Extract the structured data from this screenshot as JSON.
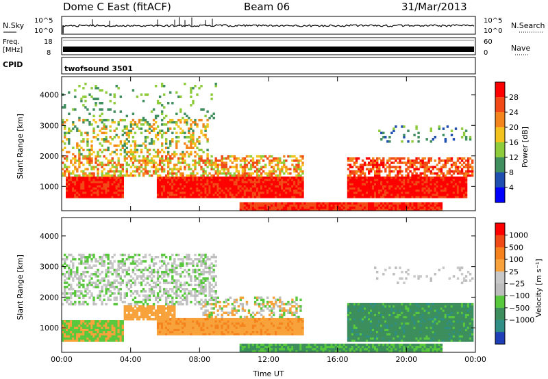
{
  "header": {
    "title": "Dome C East (fitACF)",
    "beam": "Beam 06",
    "date": "31/Mar/2013"
  },
  "aux": {
    "nsky_label": "N.Sky",
    "nsky_ticks": [
      "10^5",
      "10^0"
    ],
    "nsearch_label": "N.Search",
    "nsearch_ticks": [
      "10^5",
      "10^0"
    ],
    "freq_label": "Freq.",
    "freq_unit": "[MHz]",
    "freq_ticks": [
      "18",
      "8"
    ],
    "nave_label": "Nave",
    "nave_ticks": [
      "60",
      "0"
    ],
    "cpid_label": "CPID",
    "cpid_value": "twofsound 3501"
  },
  "chart_data": [
    {
      "type": "heatmap",
      "name": "power-panel",
      "ylabel": "Slant Range [km]",
      "y_ticks": [
        1000,
        2000,
        3000,
        4000
      ],
      "ylim": [
        200,
        4600
      ],
      "x_ticks": [
        "00:00",
        "04:00",
        "08:00",
        "12:00",
        "16:00",
        "20:00",
        "00:00"
      ],
      "xlim_hours": [
        0,
        24
      ],
      "colorbar": {
        "label": "Power [dB]",
        "ticks": [
          "4",
          "8",
          "12",
          "16",
          "20",
          "24",
          "28"
        ],
        "colors": [
          "#0000ff",
          "#1f4fb0",
          "#3f8f5f",
          "#8ecc3c",
          "#f4c21f",
          "#f4851c",
          "#f24a16",
          "#ff0000"
        ]
      }
    },
    {
      "type": "heatmap",
      "name": "velocity-panel",
      "ylabel": "Slant Range [km]",
      "xlabel": "Time UT",
      "y_ticks": [
        1000,
        2000,
        3000,
        4000
      ],
      "ylim": [
        200,
        4600
      ],
      "x_ticks": [
        "00:00",
        "04:00",
        "08:00",
        "12:00",
        "16:00",
        "20:00",
        "00:00"
      ],
      "xlim_hours": [
        0,
        24
      ],
      "colorbar": {
        "label": "Velocity [m s⁻¹]",
        "ticks": [
          "1000",
          "500",
          "100",
          "25",
          "−25",
          "−100",
          "−500",
          "−1000"
        ],
        "colors": [
          "#1f3fb8",
          "#2f8f86",
          "#3c8f5c",
          "#58c83c",
          "#bdbdbd",
          "#c8c8c8",
          "#f7a23a",
          "#f5821c",
          "#f04a16",
          "#ff0000"
        ]
      }
    }
  ]
}
